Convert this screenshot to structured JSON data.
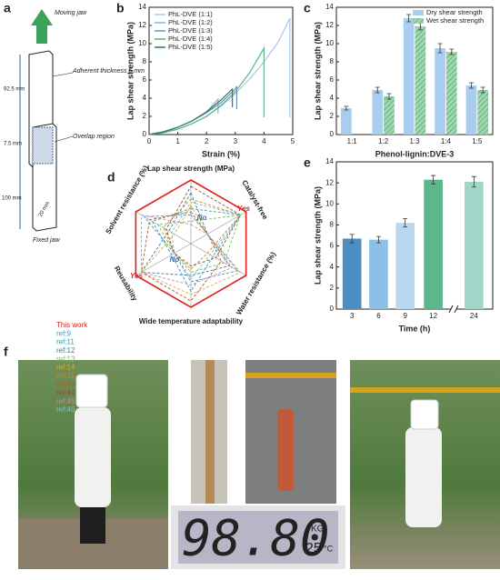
{
  "schematic": {
    "panel": "a",
    "moving": "Moving jaw",
    "thickness": "Adherent thickness 5 mm",
    "top_len": "92.5 mm",
    "overlap_len": "7.5 mm",
    "overlap": "Overlap region",
    "bottom_len": "100 mm",
    "width": "20 mm",
    "fixed": "Fixed jaw"
  },
  "chart_data": [
    {
      "panel": "b",
      "type": "line",
      "xlabel": "Strain (%)",
      "ylabel": "Lap shear strength (MPa)",
      "xlim": [
        0,
        5
      ],
      "xticks": [
        0,
        1,
        2,
        3,
        4,
        5
      ],
      "ylim": [
        0,
        14
      ],
      "yticks": [
        0,
        2,
        4,
        6,
        8,
        10,
        12,
        14
      ],
      "legend": "upper left",
      "series": [
        {
          "name": "PhL-DVE (1:1)",
          "color": "#a9c6ea",
          "x": [
            0,
            0.5,
            1,
            1.5,
            2,
            2.5,
            3,
            3.5,
            4,
            4.5,
            4.9,
            4.9
          ],
          "values": [
            0,
            0.2,
            0.6,
            1.2,
            2,
            3.1,
            4.5,
            6.1,
            8,
            10.2,
            12.8,
            1.9
          ]
        },
        {
          "name": "PhL-DVE (1:2)",
          "color": "#8fb0d8",
          "x": [
            0,
            0.5,
            1,
            1.5,
            2,
            2.4,
            2.4
          ],
          "values": [
            0,
            0.3,
            0.8,
            1.5,
            2.5,
            3.9,
            2.3
          ]
        },
        {
          "name": "PhL-DVE (1:3)",
          "color": "#6b8dbd",
          "x": [
            0,
            0.5,
            1,
            1.5,
            2,
            2.5,
            3,
            3.05,
            3.05
          ],
          "values": [
            0,
            0.3,
            0.8,
            1.5,
            2.4,
            3.5,
            5,
            5.3,
            2.8
          ]
        },
        {
          "name": "PhL-DVE (1:4)",
          "color": "#5ab38a",
          "x": [
            0,
            0.5,
            1,
            1.5,
            2,
            2.5,
            3,
            3.5,
            4,
            4
          ],
          "values": [
            0,
            0.2,
            0.6,
            1.2,
            2,
            3.2,
            4.7,
            6.8,
            9.5,
            1.9
          ]
        },
        {
          "name": "PhL-DVE (1:5)",
          "color": "#2e7d5a",
          "x": [
            0,
            0.5,
            1,
            1.5,
            2,
            2.5,
            2.9,
            2.9
          ],
          "values": [
            0,
            0.3,
            0.8,
            1.5,
            2.5,
            3.8,
            5,
            3
          ]
        }
      ]
    },
    {
      "panel": "c",
      "type": "bar",
      "xlabel": "Phenol-lignin:DVE-3",
      "ylabel": "Lap shear strength (MPa)",
      "categories": [
        "1:1",
        "1:2",
        "1:3",
        "1:4",
        "1:5"
      ],
      "ylim": [
        0,
        14
      ],
      "yticks": [
        0,
        2,
        4,
        6,
        8,
        10,
        12,
        14
      ],
      "legend": "upper right",
      "series": [
        {
          "name": "Dry shear strength",
          "color": "#a9cdee",
          "values": [
            2.9,
            4.9,
            12.8,
            9.5,
            5.4
          ],
          "errors": [
            0.2,
            0.3,
            0.4,
            0.5,
            0.3
          ]
        },
        {
          "name": "Wet shear strength",
          "color": "#9fd8b0",
          "hatch": true,
          "values": [
            null,
            4.2,
            11.9,
            9.1,
            4.9
          ],
          "errors": [
            null,
            0.3,
            0.4,
            0.3,
            0.3
          ]
        }
      ]
    },
    {
      "panel": "d",
      "type": "radar",
      "axes": [
        "Lap shear strength (MPa)",
        "Catalyst-free",
        "Water resistance (%)",
        "Wide temperature adaptability",
        "Reusability",
        "Solvent resistance (%)"
      ],
      "rlim": [
        0,
        1
      ],
      "annotations": [
        {
          "text": "Yes",
          "color": "#e0201b"
        },
        {
          "text": "Yes",
          "color": "#e0201b"
        },
        {
          "text": "No",
          "color": "#2a6fd0"
        },
        {
          "text": "No",
          "color": "#2a6fd0"
        }
      ],
      "series": [
        {
          "name": "This work",
          "color": "#e0201b",
          "values": [
            1,
            1,
            1,
            1,
            1,
            1
          ]
        },
        {
          "name": "ref:9",
          "color": "#4b8fd0",
          "values": [
            0.45,
            0.3,
            0.85,
            0.6,
            0.3,
            0.85
          ]
        },
        {
          "name": "ref:11",
          "color": "#2e9bb5",
          "values": [
            0.55,
            0.9,
            0.4,
            0.75,
            0.35,
            0.7
          ]
        },
        {
          "name": "ref:12",
          "color": "#3a7a9a",
          "values": [
            0.8,
            0.3,
            0.7,
            0.5,
            0.9,
            0.4
          ]
        },
        {
          "name": "ref:13",
          "color": "#7bbf5a",
          "values": [
            0.35,
            0.9,
            0.6,
            0.45,
            0.3,
            0.6
          ]
        },
        {
          "name": "ref:14",
          "color": "#d6b02a",
          "values": [
            0.6,
            0.3,
            0.9,
            0.8,
            0.9,
            0.3
          ]
        },
        {
          "name": "ref:15",
          "color": "#c88a20",
          "values": [
            0.7,
            0.9,
            0.3,
            0.4,
            0.3,
            0.5
          ]
        },
        {
          "name": "ref:43",
          "color": "#b05a2a",
          "values": [
            0.5,
            0.3,
            0.55,
            0.9,
            0.9,
            0.75
          ]
        },
        {
          "name": "ref:44",
          "color": "#8a5030",
          "values": [
            0.9,
            0.9,
            0.45,
            0.35,
            0.3,
            0.45
          ]
        },
        {
          "name": "ref:45",
          "color": "#d08aa0",
          "values": [
            0.3,
            0.3,
            0.75,
            0.65,
            0.9,
            0.9
          ]
        },
        {
          "name": "ref:46",
          "color": "#80c0c0",
          "values": [
            0.65,
            0.9,
            0.35,
            0.55,
            0.3,
            0.35
          ]
        }
      ]
    },
    {
      "panel": "e",
      "type": "bar",
      "xlabel": "Time (h)",
      "ylabel": "Lap shear strength (MPa)",
      "categories": [
        "3",
        "6",
        "9",
        "12",
        "24"
      ],
      "colors": [
        "#4a8ec4",
        "#8cc0e6",
        "#b7d8f0",
        "#5cb88a",
        "#9fd6c7"
      ],
      "values": [
        6.7,
        6.6,
        8.2,
        12.3,
        12.1
      ],
      "errors": [
        0.4,
        0.3,
        0.4,
        0.4,
        0.5
      ],
      "ylim": [
        0,
        14
      ],
      "yticks": [
        0,
        2,
        4,
        6,
        8,
        10,
        12,
        14
      ],
      "axis_break": true
    }
  ],
  "photo": {
    "panel": "f",
    "reading": "98.80",
    "unit": "KG",
    "temp": "25",
    "temp_unit": "°C"
  }
}
